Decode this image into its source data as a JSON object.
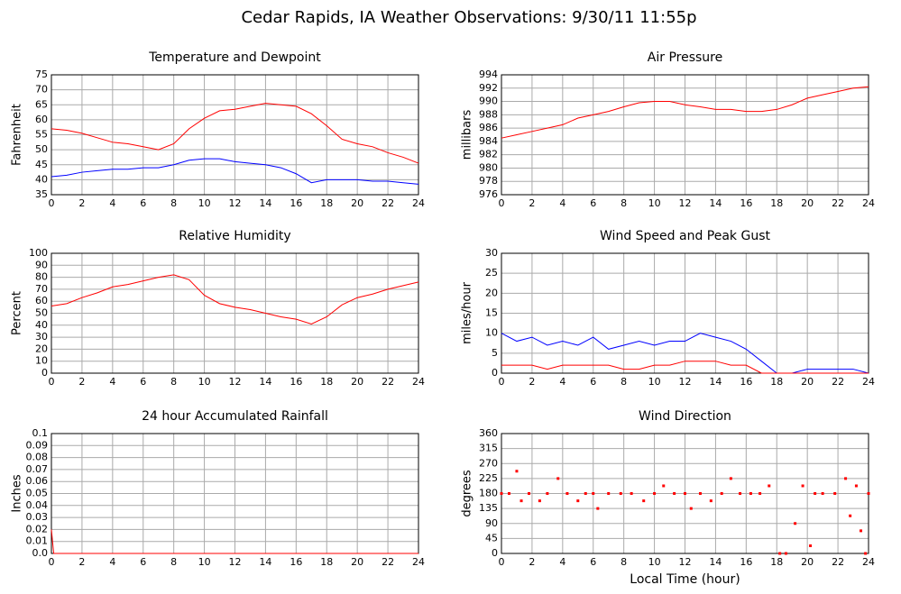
{
  "title": "Cedar Rapids, IA Weather Observations: 9/30/11 11:55p",
  "chart_data": [
    {
      "type": "line",
      "title": "Temperature and Dewpoint",
      "ylabel": "Fahrenheit",
      "x": [
        0,
        1,
        2,
        3,
        4,
        5,
        6,
        7,
        8,
        9,
        10,
        11,
        12,
        13,
        14,
        15,
        16,
        17,
        18,
        19,
        20,
        21,
        22,
        23,
        24
      ],
      "series": [
        {
          "color": "#ff0000",
          "values": [
            57,
            56.5,
            55.5,
            54,
            52.5,
            52,
            51,
            50,
            52,
            57,
            60.5,
            63,
            63.5,
            64.5,
            65.5,
            65,
            64.5,
            62,
            58,
            53.5,
            52,
            51,
            49,
            47.5,
            45.5
          ]
        },
        {
          "color": "#0000ff",
          "values": [
            41,
            41.5,
            42.5,
            43,
            43.5,
            43.5,
            44,
            44,
            45,
            46.5,
            47,
            47,
            46,
            45.5,
            45,
            44,
            42,
            39,
            40,
            40,
            40,
            39.5,
            39.5,
            39,
            38.5
          ]
        }
      ],
      "xlim": [
        0,
        24
      ],
      "xticks": [
        0,
        2,
        4,
        6,
        8,
        10,
        12,
        14,
        16,
        18,
        20,
        22,
        24
      ],
      "ylim": [
        35,
        75
      ],
      "yticks": [
        35,
        40,
        45,
        50,
        55,
        60,
        65,
        70,
        75
      ],
      "grid": true
    },
    {
      "type": "line",
      "title": "Air Pressure",
      "ylabel": "millibars",
      "x": [
        0,
        1,
        2,
        3,
        4,
        5,
        6,
        7,
        8,
        9,
        10,
        11,
        12,
        13,
        14,
        15,
        16,
        17,
        18,
        19,
        20,
        21,
        22,
        23,
        24
      ],
      "series": [
        {
          "color": "#ff0000",
          "values": [
            984.5,
            985,
            985.5,
            986,
            986.5,
            987.5,
            988,
            988.5,
            989.2,
            989.8,
            990,
            990,
            989.5,
            989.2,
            988.8,
            988.8,
            988.5,
            988.5,
            988.8,
            989.5,
            990.5,
            991,
            991.5,
            992,
            992.2
          ]
        }
      ],
      "xlim": [
        0,
        24
      ],
      "xticks": [
        0,
        2,
        4,
        6,
        8,
        10,
        12,
        14,
        16,
        18,
        20,
        22,
        24
      ],
      "ylim": [
        976,
        994
      ],
      "yticks": [
        976,
        978,
        980,
        982,
        984,
        986,
        988,
        990,
        992,
        994
      ],
      "grid": true
    },
    {
      "type": "line",
      "title": "Relative Humidity",
      "ylabel": "Percent",
      "x": [
        0,
        1,
        2,
        3,
        4,
        5,
        6,
        7,
        8,
        9,
        10,
        11,
        12,
        13,
        14,
        15,
        16,
        17,
        18,
        19,
        20,
        21,
        22,
        23,
        24
      ],
      "series": [
        {
          "color": "#ff0000",
          "values": [
            56,
            58,
            63,
            67,
            72,
            74,
            77,
            80,
            82,
            78,
            65,
            58,
            55,
            53,
            50,
            47,
            45,
            41,
            47,
            57,
            63,
            66,
            70,
            73,
            76
          ]
        }
      ],
      "xlim": [
        0,
        24
      ],
      "xticks": [
        0,
        2,
        4,
        6,
        8,
        10,
        12,
        14,
        16,
        18,
        20,
        22,
        24
      ],
      "ylim": [
        0,
        100
      ],
      "yticks": [
        0,
        10,
        20,
        30,
        40,
        50,
        60,
        70,
        80,
        90,
        100
      ],
      "grid": true
    },
    {
      "type": "line",
      "title": "Wind Speed and Peak Gust",
      "ylabel": "miles/hour",
      "x": [
        0,
        1,
        2,
        3,
        4,
        5,
        6,
        7,
        8,
        9,
        10,
        11,
        12,
        13,
        14,
        15,
        16,
        17,
        18,
        19,
        20,
        21,
        22,
        23,
        24
      ],
      "series": [
        {
          "color": "#0000ff",
          "values": [
            10,
            8,
            9,
            7,
            8,
            7,
            9,
            6,
            7,
            8,
            7,
            8,
            8,
            10,
            9,
            8,
            6,
            3,
            0,
            0,
            1,
            1,
            1,
            1,
            0
          ]
        },
        {
          "color": "#ff0000",
          "values": [
            2,
            2,
            2,
            1,
            2,
            2,
            2,
            2,
            1,
            1,
            2,
            2,
            3,
            3,
            3,
            2,
            2,
            0,
            0,
            0,
            0,
            0,
            0,
            0,
            0
          ]
        }
      ],
      "xlim": [
        0,
        24
      ],
      "xticks": [
        0,
        2,
        4,
        6,
        8,
        10,
        12,
        14,
        16,
        18,
        20,
        22,
        24
      ],
      "ylim": [
        0,
        30
      ],
      "yticks": [
        0,
        5,
        10,
        15,
        20,
        25,
        30
      ],
      "grid": true
    },
    {
      "type": "line",
      "title": "24 hour Accumulated Rainfall",
      "ylabel": "Inches",
      "x": [
        0,
        0.15,
        24
      ],
      "series": [
        {
          "color": "#ff0000",
          "values": [
            0.02,
            0,
            0
          ]
        }
      ],
      "xlim": [
        0,
        24
      ],
      "xticks": [
        0,
        2,
        4,
        6,
        8,
        10,
        12,
        14,
        16,
        18,
        20,
        22,
        24
      ],
      "ylim": [
        0,
        0.1
      ],
      "yticks": [
        {
          "value": 0,
          "label": "0.0"
        },
        0.01,
        0.02,
        0.03,
        0.04,
        0.05,
        0.06,
        0.07,
        0.08,
        0.09,
        0.1
      ],
      "grid": true
    },
    {
      "type": "scatter",
      "title": "Wind Direction",
      "ylabel": "degrees",
      "xlabel": "Local Time (hour)",
      "x": [
        0,
        0.5,
        1,
        1.3,
        1.8,
        2.5,
        3,
        3.7,
        4.3,
        5,
        5.5,
        6,
        6.3,
        7,
        7.8,
        8.5,
        9.3,
        10,
        10.6,
        11.3,
        12,
        12.4,
        13,
        13.7,
        14.4,
        15,
        15.6,
        16.3,
        16.9,
        17.5,
        18.2,
        18.6,
        19.2,
        19.7,
        20.2,
        20.5,
        21,
        21.8,
        22.5,
        22.8,
        23.2,
        23.5,
        23.8,
        24
      ],
      "series": [
        {
          "color": "#ff0000",
          "values": [
            180,
            180,
            247,
            158,
            180,
            158,
            180,
            225,
            180,
            158,
            180,
            180,
            135,
            180,
            180,
            180,
            158,
            180,
            203,
            180,
            180,
            135,
            180,
            158,
            180,
            225,
            180,
            180,
            180,
            203,
            0,
            0,
            90,
            203,
            23,
            180,
            180,
            180,
            225,
            113,
            203,
            68,
            0,
            180
          ]
        }
      ],
      "xlim": [
        0,
        24
      ],
      "xticks": [
        0,
        2,
        4,
        6,
        8,
        10,
        12,
        14,
        16,
        18,
        20,
        22,
        24
      ],
      "ylim": [
        0,
        360
      ],
      "yticks": [
        0,
        45,
        90,
        135,
        180,
        225,
        270,
        315,
        360
      ],
      "grid": true
    }
  ]
}
